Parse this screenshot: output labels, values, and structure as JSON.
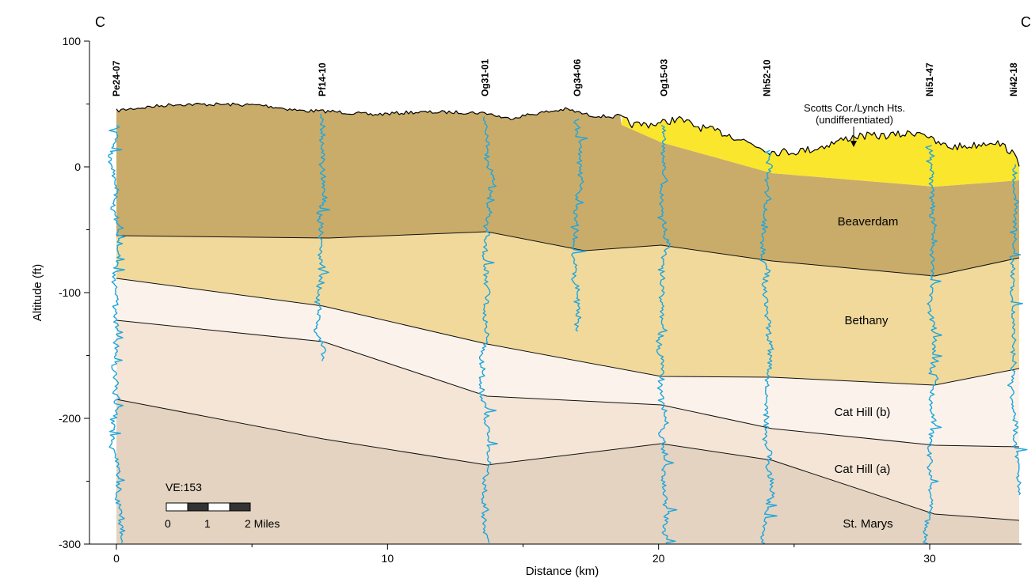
{
  "figure": {
    "corner_left": "C",
    "corner_right": "C",
    "ylabel": "Altitude (ft)",
    "xlabel": "Distance (km)",
    "xlim": [
      0,
      33.3
    ],
    "ylim": [
      -300,
      100
    ],
    "x_ticks": [
      {
        "value": 0,
        "label": "0"
      },
      {
        "value": 10,
        "label": "10"
      },
      {
        "value": 20,
        "label": "20"
      },
      {
        "value": 30,
        "label": "30"
      }
    ],
    "y_ticks": [
      {
        "value": 100,
        "label": "100"
      },
      {
        "value": 0,
        "label": "0"
      },
      {
        "value": -100,
        "label": "-100"
      },
      {
        "value": -200,
        "label": "-200"
      },
      {
        "value": -300,
        "label": "-300"
      }
    ]
  },
  "wells": [
    {
      "name": "Pe24-07",
      "x": 0.0,
      "top": 33,
      "bottom": -300
    },
    {
      "name": "Pf14-10",
      "x": 7.6,
      "top": 42,
      "bottom": -155
    },
    {
      "name": "Og31-01",
      "x": 13.6,
      "top": 40,
      "bottom": -300
    },
    {
      "name": "Og34-06",
      "x": 17.0,
      "top": 38,
      "bottom": -132
    },
    {
      "name": "Og15-03",
      "x": 20.2,
      "top": 33,
      "bottom": -300
    },
    {
      "name": "Nh52-10",
      "x": 24.0,
      "top": 13,
      "bottom": -300
    },
    {
      "name": "Ni51-47",
      "x": 30.0,
      "top": 17,
      "bottom": -300
    },
    {
      "name": "Ni42-18",
      "x": 33.1,
      "top": 2,
      "bottom": -262
    }
  ],
  "units": [
    {
      "name": "Scotts Cor./Lynch Hts.",
      "name_line2": "(undifferentiated)",
      "color": "#fae62d"
    },
    {
      "name": "Beaverdam",
      "color": "#c9ac6a"
    },
    {
      "name": "Bethany",
      "color": "#f1d99c"
    },
    {
      "name": "Cat Hill (b)",
      "color": "#fbf3eb"
    },
    {
      "name": "Cat Hill (a)",
      "color": "#f5e5d6"
    },
    {
      "name": "St. Marys",
      "color": "#e3d3c0"
    }
  ],
  "scale_bar": {
    "ve_label": "VE:153",
    "tick_labels": [
      "0",
      "1",
      "2 Miles"
    ]
  }
}
